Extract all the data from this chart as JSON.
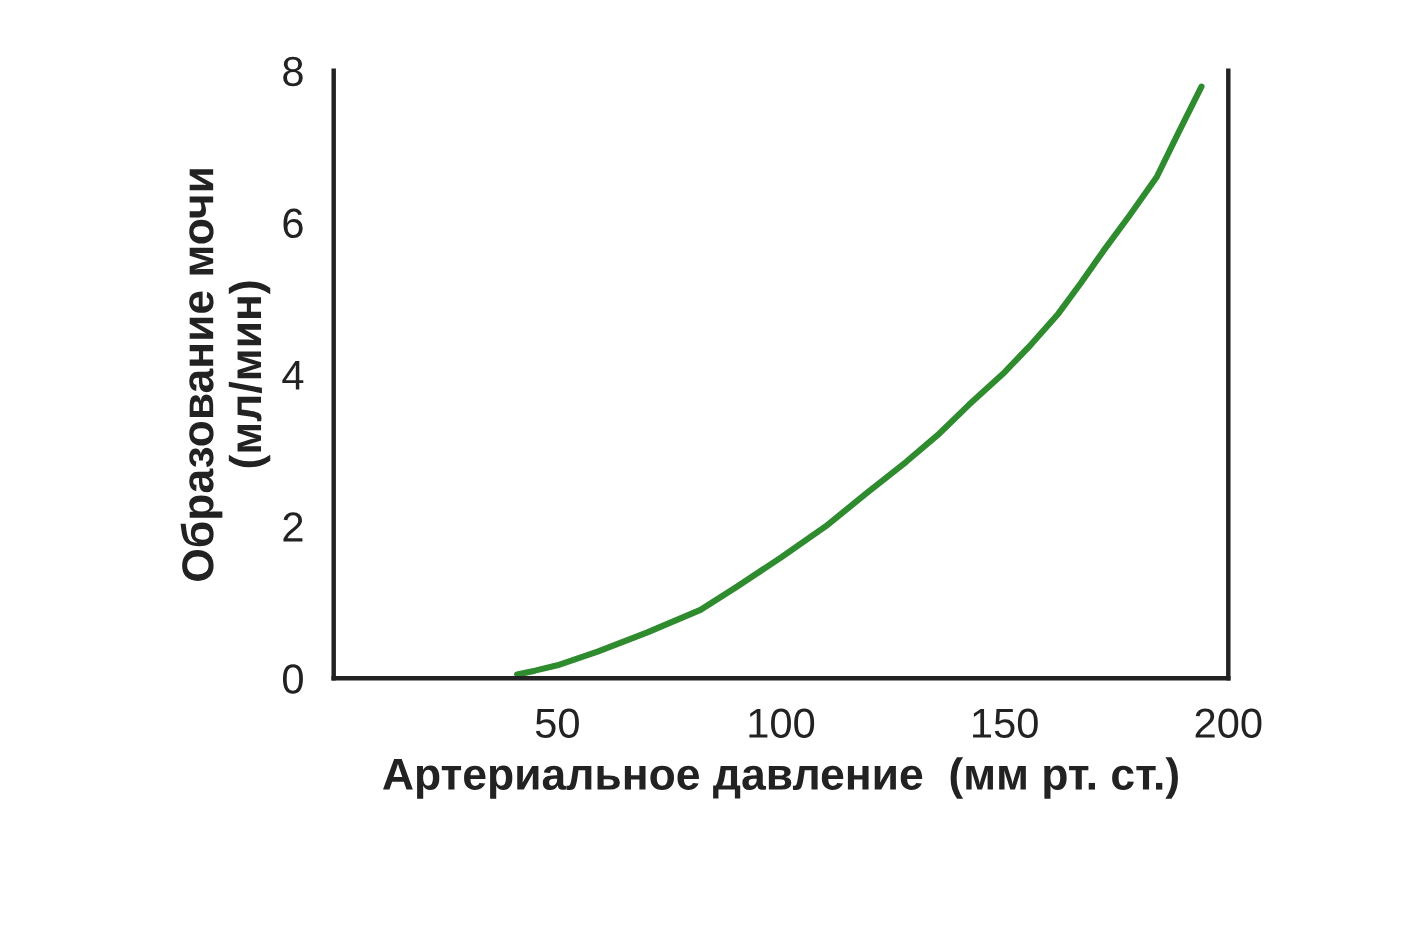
{
  "chart_data": {
    "type": "line",
    "xlabel": "Артериальное давление  (мм рт. ст.)",
    "ylabel": "Образование мочи\n(мл/мин)",
    "x": [
      41,
      45,
      50,
      59,
      70,
      82,
      90,
      100,
      110,
      119,
      128,
      135,
      142,
      150,
      156,
      162,
      167,
      172,
      178,
      184,
      189,
      194
    ],
    "series": [
      {
        "color": "#2e8b2e",
        "values": [
          0.05,
          0.1,
          0.17,
          0.35,
          0.6,
          0.9,
          1.2,
          1.59,
          2.0,
          2.43,
          2.85,
          3.2,
          3.6,
          4.03,
          4.4,
          4.8,
          5.2,
          5.62,
          6.1,
          6.6,
          7.2,
          7.79
        ]
      }
    ],
    "xlim": [
      0,
      200
    ],
    "ylim": [
      0,
      8
    ],
    "xticks": [
      50,
      100,
      150,
      200
    ],
    "yticks": [
      0,
      2,
      4,
      6,
      8
    ],
    "grid": false,
    "marker": "none",
    "line_style": "solid"
  }
}
